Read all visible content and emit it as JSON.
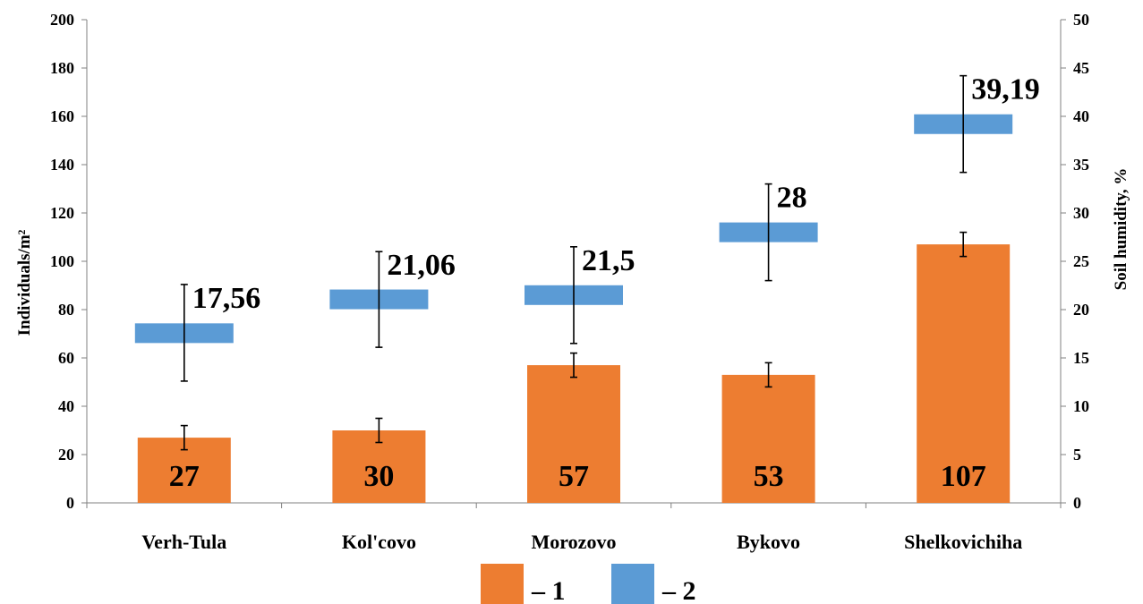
{
  "chart_data": {
    "type": "bar",
    "categories": [
      "Verh-Tula",
      "Kol'covo",
      "Morozovo",
      "Bykovo",
      "Shelkovichiha"
    ],
    "ylabel_left": "Individuals/m²",
    "ylabel_right": "Soil humidity, %",
    "ylim_left": [
      0,
      200
    ],
    "ylim_right": [
      0,
      50
    ],
    "yticks_left": [
      "0",
      "20",
      "40",
      "60",
      "80",
      "100",
      "120",
      "140",
      "160",
      "180",
      "200"
    ],
    "yticks_right": [
      "0",
      "5",
      "10",
      "15",
      "20",
      "25",
      "30",
      "35",
      "40",
      "45",
      "50"
    ],
    "grid": false,
    "legend_position": "bottom",
    "series": [
      {
        "name": "– 1",
        "axis": "left",
        "kind": "bar",
        "color": "#ED7D31",
        "values": [
          27,
          30,
          57,
          53,
          107
        ],
        "labels": [
          "27",
          "30",
          "57",
          "53",
          "107"
        ],
        "error_low": [
          22,
          25,
          52,
          48,
          102
        ],
        "error_high": [
          32,
          35,
          62,
          58,
          112
        ]
      },
      {
        "name": "– 2",
        "axis": "right",
        "kind": "marker",
        "color": "#5B9BD5",
        "values": [
          17.56,
          21.06,
          21.5,
          28,
          39.19
        ],
        "labels": [
          "17,56",
          "21,06",
          "21,5",
          "28",
          "39,19"
        ],
        "error_low": [
          12.6,
          16.1,
          16.5,
          23,
          34.2
        ],
        "error_high": [
          22.6,
          26,
          26.5,
          33,
          44.2
        ]
      }
    ]
  }
}
